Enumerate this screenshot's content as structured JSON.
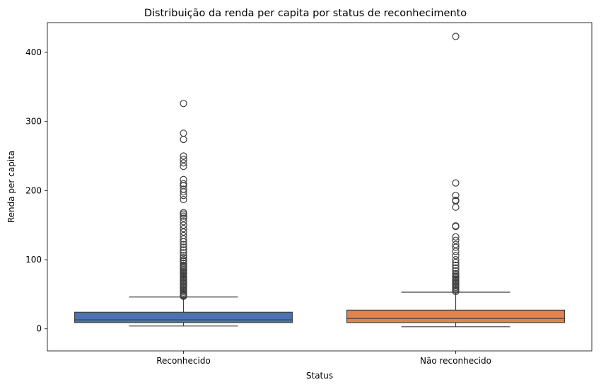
{
  "chart_data": {
    "type": "box",
    "title": "Distribuição da renda per capita por status de reconhecimento",
    "xlabel": "Status",
    "ylabel": "Renda per capita",
    "ylim": [
      -32,
      443
    ],
    "yticks": [
      0,
      100,
      200,
      300,
      400
    ],
    "grid": false,
    "legend": "none",
    "categories": [
      "Reconhecido",
      "Não reconhecido"
    ],
    "boxes": [
      {
        "category": "Reconhecido",
        "color": "#4c72b0",
        "whisker_low": 4,
        "q1": 9,
        "median": 13,
        "q3": 24,
        "whisker_high": 46,
        "outliers": [
          47,
          48,
          49,
          50,
          52,
          54,
          56,
          58,
          60,
          62,
          64,
          66,
          68,
          70,
          72,
          74,
          76,
          78,
          80,
          82,
          84,
          86,
          88,
          90,
          92,
          95,
          98,
          100,
          103,
          106,
          110,
          114,
          118,
          122,
          126,
          130,
          135,
          140,
          145,
          150,
          155,
          160,
          163,
          166,
          168,
          187,
          193,
          198,
          202,
          207,
          210,
          216,
          235,
          240,
          245,
          250,
          274,
          283,
          326
        ]
      },
      {
        "category": "Não reconhecido",
        "color": "#dd8452",
        "whisker_low": 3,
        "q1": 9,
        "median": 15,
        "q3": 27,
        "whisker_high": 53,
        "outliers": [
          54,
          56,
          58,
          60,
          62,
          64,
          66,
          68,
          70,
          72,
          74,
          76,
          78,
          80,
          84,
          88,
          92,
          96,
          100,
          106,
          112,
          118,
          122,
          128,
          133,
          148,
          149,
          176,
          185,
          186,
          193,
          211,
          423
        ]
      }
    ]
  }
}
